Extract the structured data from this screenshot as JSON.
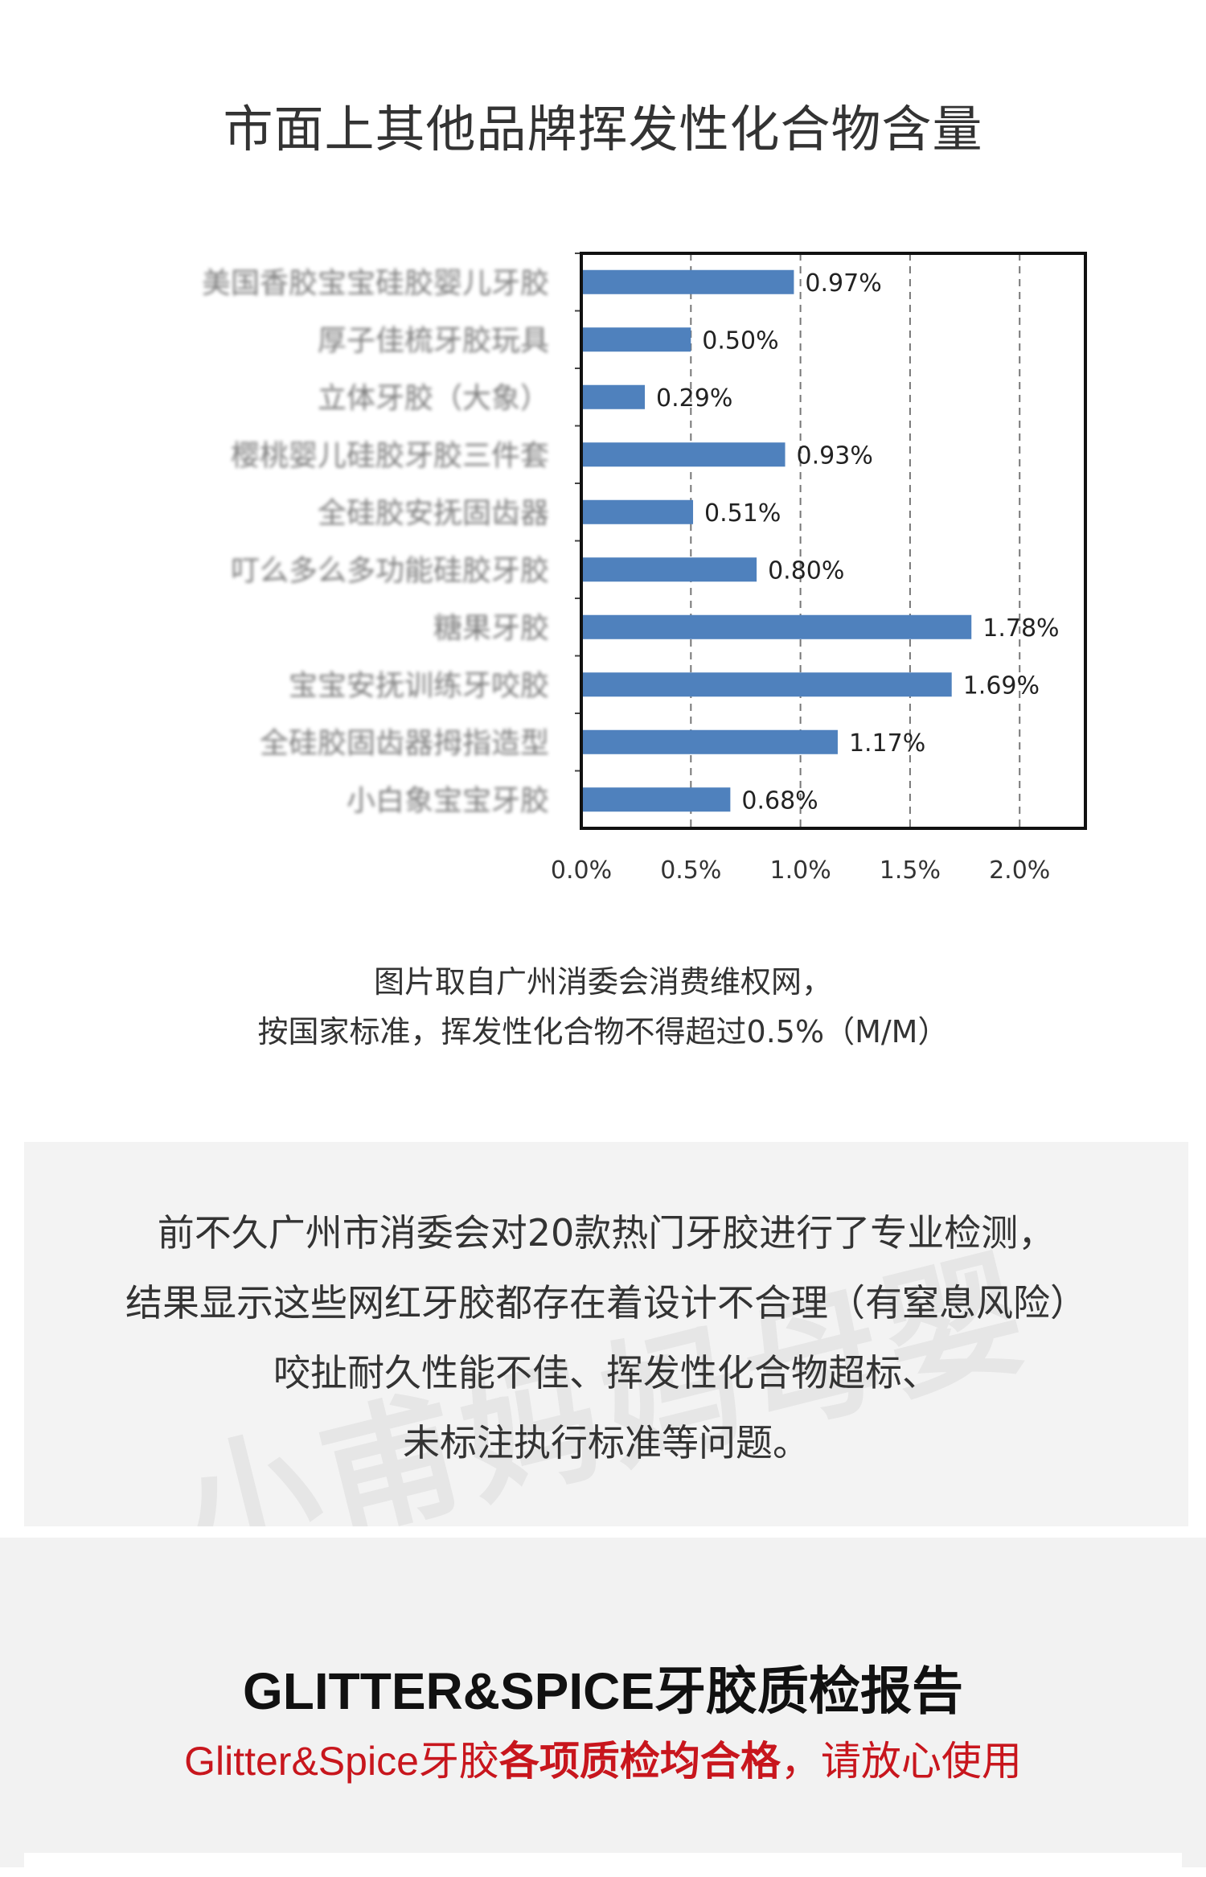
{
  "page": {
    "title": "市面上其他品牌挥发性化合物含量"
  },
  "chart_data": {
    "type": "bar",
    "orientation": "horizontal",
    "categories": [
      "美国香胶宝宝硅胶婴儿牙胶",
      "厚子佳梳牙胶玩具",
      "立体牙胶（大象）",
      "樱桃婴儿硅胶牙胶三件套",
      "全硅胶安抚固齿器",
      "叮么多么多功能硅胶牙胶",
      "糖果牙胶",
      "宝宝安抚训练牙咬胶",
      "全硅胶固齿器拇指造型",
      "小白象宝宝牙胶"
    ],
    "values": [
      0.97,
      0.5,
      0.29,
      0.93,
      0.51,
      0.8,
      1.78,
      1.69,
      1.17,
      0.68
    ],
    "value_labels": [
      "0.97%",
      "0.50%",
      "0.29%",
      "0.93%",
      "0.51%",
      "0.80%",
      "1.78%",
      "1.69%",
      "1.17%",
      "0.68%"
    ],
    "xlim": [
      0,
      2.3
    ],
    "xticks": [
      "0.0%",
      "0.5%",
      "1.0%",
      "1.5%",
      "2.0%"
    ],
    "xtick_values": [
      0,
      0.5,
      1.0,
      1.5,
      2.0
    ],
    "grid": "vertical dashed",
    "bar_color": "#4f81bd",
    "category_labels_blurred": true
  },
  "caption": {
    "line1": "图片取自广州消委会消费维权网，",
    "line2": "按国家标准，挥发性化合物不得超过0.5%（M/M）"
  },
  "notice": {
    "lines": [
      "前不久广州市消委会对20款热门牙胶进行了专业检测，",
      "结果显示这些网红牙胶都存在着设计不合理（有窒息风险）",
      "咬扯耐久性能不佳、挥发性化合物超标、",
      "未标注执行标准等问题。"
    ],
    "watermark": "小甫妈妈母婴"
  },
  "report": {
    "title": "GLITTER&SPICE牙胶质检报告",
    "subtitle_part1": "Glitter&Spice牙胶",
    "subtitle_part2": "各项质检均合格",
    "subtitle_part3": "，请放心使用",
    "accent_color": "#c8161d"
  }
}
